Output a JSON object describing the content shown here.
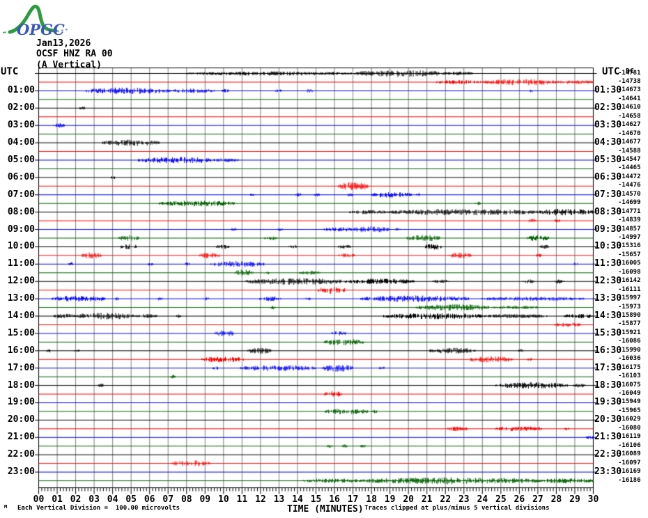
{
  "logo": {
    "text": "OPGC",
    "green": "#2e9b3e",
    "blue": "#3a57c0"
  },
  "header": {
    "date": "Jan13,2026",
    "station": "OCSF HNZ RA 00",
    "component": "(A Vertical)"
  },
  "axes": {
    "left_axis_label": "UTC",
    "right_axis_label": "UTC",
    "dc_header": "DC",
    "left_times": [
      "01:00",
      "02:00",
      "03:00",
      "04:00",
      "05:00",
      "06:00",
      "07:00",
      "08:00",
      "09:00",
      "10:00",
      "11:00",
      "12:00",
      "13:00",
      "14:00",
      "15:00",
      "16:00",
      "17:00",
      "18:00",
      "19:00",
      "20:00",
      "21:00",
      "22:00",
      "23:00"
    ],
    "right_times": [
      "01:30",
      "02:30",
      "03:30",
      "04:30",
      "05:30",
      "06:30",
      "07:30",
      "08:30",
      "09:30",
      "10:30",
      "11:30",
      "12:30",
      "13:30",
      "14:30",
      "15:30",
      "16:30",
      "17:30",
      "18:30",
      "19:30",
      "20:30",
      "21:30",
      "22:30",
      "23:30"
    ],
    "minutes": [
      "00",
      "01",
      "02",
      "03",
      "04",
      "05",
      "06",
      "07",
      "08",
      "09",
      "10",
      "11",
      "12",
      "13",
      "14",
      "15",
      "16",
      "17",
      "18",
      "19",
      "20",
      "21",
      "22",
      "23",
      "24",
      "25",
      "26",
      "27",
      "28",
      "29",
      "30"
    ],
    "xlabel": "TIME (MINUTES)"
  },
  "footer": {
    "left_note": "Each Vertical Division =  100.00 microvolts",
    "right_note": "Traces clipped at plus/minus 5 vertical divisions",
    "corner_mark": "M"
  },
  "colors": {
    "trace_cycle": [
      "#000000",
      "#ff0000",
      "#0000ff",
      "#006400"
    ],
    "grid": "#808080",
    "border": "#000000"
  },
  "chart_data": {
    "type": "line",
    "subtype": "helicorder-seismogram",
    "title": "OCSF HNZ RA 00 (A Vertical) Jan13,2026",
    "xlabel": "TIME (MINUTES)",
    "x_range": [
      0,
      30
    ],
    "minutes_per_line": 30,
    "color_cycle": [
      "black",
      "red",
      "blue",
      "green"
    ],
    "lines": [
      {
        "start": "00:00",
        "color": "black",
        "dc_offset": -14781,
        "bursts": [
          [
            8,
            17,
            1.3
          ],
          [
            17,
            22,
            2.2
          ],
          [
            22,
            23.5,
            1.2
          ]
        ]
      },
      {
        "start": "00:30",
        "color": "red",
        "dc_offset": -14738,
        "bursts": [
          [
            21.5,
            24,
            1.2
          ],
          [
            24,
            28,
            2.0
          ],
          [
            28,
            30,
            1.3
          ]
        ]
      },
      {
        "start": "01:00",
        "color": "blue",
        "dc_offset": -14673,
        "bursts": [
          [
            2.5,
            7,
            2.2
          ],
          [
            7,
            9.5,
            1.3
          ],
          [
            9.9,
            10.3,
            1.2
          ],
          [
            12.8,
            13.2,
            1.2
          ],
          [
            14.4,
            14.8,
            1.2
          ],
          [
            26.5,
            26.7,
            1.0
          ]
        ]
      },
      {
        "start": "01:30",
        "color": "green",
        "dc_offset": -14641,
        "bursts": []
      },
      {
        "start": "02:00",
        "color": "black",
        "dc_offset": -14610,
        "bursts": [
          [
            2.2,
            2.5,
            1.2
          ]
        ]
      },
      {
        "start": "02:30",
        "color": "red",
        "dc_offset": -14658,
        "bursts": []
      },
      {
        "start": "03:00",
        "color": "blue",
        "dc_offset": -14627,
        "bursts": [
          [
            0.8,
            1.4,
            1.3
          ]
        ]
      },
      {
        "start": "03:30",
        "color": "green",
        "dc_offset": -14670,
        "bursts": []
      },
      {
        "start": "04:00",
        "color": "black",
        "dc_offset": -14677,
        "bursts": [
          [
            3.4,
            6.5,
            2.0
          ]
        ]
      },
      {
        "start": "04:30",
        "color": "red",
        "dc_offset": -14588,
        "bursts": []
      },
      {
        "start": "05:00",
        "color": "blue",
        "dc_offset": -14547,
        "bursts": [
          [
            5.3,
            9.5,
            2.1
          ],
          [
            9.5,
            10.8,
            1.2
          ]
        ]
      },
      {
        "start": "05:30",
        "color": "green",
        "dc_offset": -14465,
        "bursts": []
      },
      {
        "start": "06:00",
        "color": "black",
        "dc_offset": -14472,
        "bursts": [
          [
            3.9,
            4.2,
            1.1
          ]
        ]
      },
      {
        "start": "06:30",
        "color": "red",
        "dc_offset": -14476,
        "bursts": [
          [
            16.2,
            17.8,
            2.8
          ]
        ]
      },
      {
        "start": "07:00",
        "color": "blue",
        "dc_offset": -14570,
        "bursts": [
          [
            11.4,
            11.7,
            1.1
          ],
          [
            13.9,
            14.2,
            1.1
          ],
          [
            14.9,
            15.2,
            1.1
          ],
          [
            16.7,
            17,
            1.1
          ],
          [
            18,
            20.2,
            1.9
          ],
          [
            20.4,
            20.7,
            1.2
          ]
        ]
      },
      {
        "start": "07:30",
        "color": "green",
        "dc_offset": -14699,
        "bursts": [
          [
            6.5,
            10.6,
            1.9
          ],
          [
            23.6,
            23.9,
            1.1
          ]
        ]
      },
      {
        "start": "08:00",
        "color": "black",
        "dc_offset": -14771,
        "bursts": [
          [
            16.8,
            19,
            1.3
          ],
          [
            19,
            27,
            2.1
          ],
          [
            27,
            30,
            2.3
          ]
        ]
      },
      {
        "start": "08:30",
        "color": "red",
        "dc_offset": -14839,
        "bursts": [
          [
            26.5,
            26.9,
            1.2
          ],
          [
            27.9,
            28.2,
            1.1
          ]
        ]
      },
      {
        "start": "09:00",
        "color": "blue",
        "dc_offset": -14857,
        "bursts": [
          [
            10.4,
            10.7,
            1.1
          ],
          [
            12.9,
            13.2,
            1.1
          ],
          [
            15.4,
            17,
            1.4
          ],
          [
            17,
            19,
            2.1
          ],
          [
            19.3,
            19.6,
            1.1
          ]
        ]
      },
      {
        "start": "09:30",
        "color": "green",
        "dc_offset": -14997,
        "bursts": [
          [
            4.3,
            5.4,
            2.0
          ],
          [
            12.2,
            12.9,
            1.3
          ],
          [
            19.9,
            21.7,
            2.1
          ],
          [
            26.4,
            27.6,
            1.9
          ]
        ]
      },
      {
        "start": "10:00",
        "color": "black",
        "dc_offset": -15316,
        "bursts": [
          [
            4.4,
            5.3,
            2.0
          ],
          [
            9.6,
            10.3,
            1.4
          ],
          [
            13.5,
            14,
            1.2
          ],
          [
            16.2,
            16.9,
            1.3
          ],
          [
            20.9,
            21.8,
            2.0
          ],
          [
            27.1,
            27.7,
            1.3
          ]
        ]
      },
      {
        "start": "10:30",
        "color": "red",
        "dc_offset": -15657,
        "bursts": [
          [
            2.3,
            3.4,
            2.0
          ],
          [
            8.7,
            9.8,
            1.9
          ],
          [
            16.2,
            17.1,
            1.3
          ],
          [
            22.2,
            23.4,
            1.8
          ],
          [
            26.9,
            27.2,
            1.1
          ]
        ]
      },
      {
        "start": "11:00",
        "color": "blue",
        "dc_offset": -16005,
        "bursts": [
          [
            1.6,
            1.9,
            1.1
          ],
          [
            5.9,
            6.2,
            1.1
          ],
          [
            7.9,
            8.2,
            1.1
          ],
          [
            9.3,
            12.2,
            2.0
          ],
          [
            28.9,
            29.2,
            1.1
          ]
        ]
      },
      {
        "start": "11:30",
        "color": "green",
        "dc_offset": -16098,
        "bursts": [
          [
            10.6,
            11.6,
            2.1
          ],
          [
            12.3,
            12.6,
            1.2
          ],
          [
            14.1,
            15.2,
            1.3
          ]
        ]
      },
      {
        "start": "12:00",
        "color": "black",
        "dc_offset": -16142,
        "bursts": [
          [
            11.2,
            16.6,
            2.2
          ],
          [
            16.6,
            20.3,
            1.8
          ],
          [
            21.3,
            22.2,
            1.4
          ],
          [
            26.2,
            26.8,
            1.3
          ],
          [
            27.9,
            28.4,
            1.2
          ]
        ]
      },
      {
        "start": "12:30",
        "color": "red",
        "dc_offset": -16111,
        "bursts": [
          [
            15.1,
            16.6,
            2.4
          ]
        ]
      },
      {
        "start": "13:00",
        "color": "blue",
        "dc_offset": -15997,
        "bursts": [
          [
            0.7,
            3.6,
            2.0
          ],
          [
            4.1,
            4.4,
            1.2
          ],
          [
            6.4,
            6.7,
            1.1
          ],
          [
            8.9,
            9.2,
            1.1
          ],
          [
            11.9,
            13.1,
            1.4
          ],
          [
            14.4,
            14.7,
            1.1
          ],
          [
            17.4,
            23.3,
            2.1
          ],
          [
            23.9,
            29.5,
            1.3
          ]
        ]
      },
      {
        "start": "13:30",
        "color": "green",
        "dc_offset": -15973,
        "bursts": [
          [
            12.5,
            12.8,
            1.1
          ],
          [
            20.4,
            24.5,
            2.0
          ],
          [
            24.5,
            27,
            1.2
          ]
        ]
      },
      {
        "start": "14:00",
        "color": "black",
        "dc_offset": -15890,
        "bursts": [
          [
            0.8,
            2,
            1.5
          ],
          [
            2,
            5.2,
            2.2
          ],
          [
            5.2,
            6.4,
            1.4
          ],
          [
            7.4,
            7.7,
            1.1
          ],
          [
            18.6,
            24,
            2.0
          ],
          [
            24,
            27.5,
            1.3
          ],
          [
            28.4,
            30,
            1.4
          ]
        ]
      },
      {
        "start": "14:30",
        "color": "red",
        "dc_offset": -15877,
        "bursts": [
          [
            27.9,
            29.3,
            1.4
          ]
        ]
      },
      {
        "start": "15:00",
        "color": "blue",
        "dc_offset": -15921,
        "bursts": [
          [
            9.5,
            10.6,
            2.1
          ],
          [
            15.8,
            16.6,
            1.4
          ]
        ]
      },
      {
        "start": "15:30",
        "color": "green",
        "dc_offset": -16086,
        "bursts": [
          [
            15.4,
            17.6,
            2.0
          ]
        ]
      },
      {
        "start": "16:00",
        "color": "black",
        "dc_offset": -15990,
        "bursts": [
          [
            0.4,
            0.7,
            1.1
          ],
          [
            1.9,
            2.2,
            1.1
          ],
          [
            11.3,
            12.6,
            2.0
          ],
          [
            21.1,
            23.6,
            1.9
          ],
          [
            25.9,
            26.2,
            1.1
          ]
        ]
      },
      {
        "start": "16:30",
        "color": "red",
        "dc_offset": -16036,
        "bursts": [
          [
            8.8,
            11.1,
            1.9
          ],
          [
            23.3,
            25.6,
            2.0
          ],
          [
            26.4,
            26.7,
            1.2
          ]
        ]
      },
      {
        "start": "17:00",
        "color": "blue",
        "dc_offset": -16175,
        "bursts": [
          [
            9.4,
            9.7,
            1.2
          ],
          [
            10.9,
            15,
            1.9
          ],
          [
            15.3,
            17,
            2.3
          ],
          [
            18.4,
            18.7,
            1.1
          ]
        ]
      },
      {
        "start": "17:30",
        "color": "green",
        "dc_offset": -16103,
        "bursts": [
          [
            7.1,
            7.4,
            1.1
          ]
        ]
      },
      {
        "start": "18:00",
        "color": "black",
        "dc_offset": -16075,
        "bursts": [
          [
            3.2,
            3.5,
            1.1
          ],
          [
            24.7,
            28.6,
            2.0
          ],
          [
            28.9,
            29.6,
            1.3
          ]
        ]
      },
      {
        "start": "18:30",
        "color": "red",
        "dc_offset": -16049,
        "bursts": [
          [
            15.4,
            16.4,
            2.1
          ]
        ]
      },
      {
        "start": "19:00",
        "color": "blue",
        "dc_offset": -15949,
        "bursts": []
      },
      {
        "start": "19:30",
        "color": "green",
        "dc_offset": -15965,
        "bursts": [
          [
            15.4,
            17.8,
            1.9
          ],
          [
            18,
            18.3,
            1.2
          ]
        ]
      },
      {
        "start": "20:00",
        "color": "black",
        "dc_offset": -16029,
        "bursts": []
      },
      {
        "start": "20:30",
        "color": "red",
        "dc_offset": -16080,
        "bursts": [
          [
            22.1,
            23.2,
            1.4
          ],
          [
            24.7,
            27.2,
            1.5
          ],
          [
            28.4,
            28.7,
            1.1
          ]
        ]
      },
      {
        "start": "21:00",
        "color": "blue",
        "dc_offset": -16119,
        "bursts": [
          [
            29.6,
            30,
            1.2
          ]
        ]
      },
      {
        "start": "21:30",
        "color": "green",
        "dc_offset": -16106,
        "bursts": [
          [
            15.6,
            15.9,
            1.1
          ],
          [
            16.4,
            16.7,
            1.1
          ],
          [
            17.4,
            17.7,
            1.1
          ]
        ]
      },
      {
        "start": "22:00",
        "color": "black",
        "dc_offset": -16089,
        "bursts": []
      },
      {
        "start": "22:30",
        "color": "red",
        "dc_offset": -16097,
        "bursts": [
          [
            7.2,
            9.3,
            2.1
          ]
        ]
      },
      {
        "start": "23:00",
        "color": "blue",
        "dc_offset": -16169,
        "bursts": []
      },
      {
        "start": "23:30",
        "color": "green",
        "dc_offset": -16186,
        "bursts": [
          [
            14.3,
            17.5,
            1.4
          ],
          [
            17.5,
            27,
            2.3
          ],
          [
            27,
            30,
            1.5
          ]
        ]
      }
    ]
  }
}
